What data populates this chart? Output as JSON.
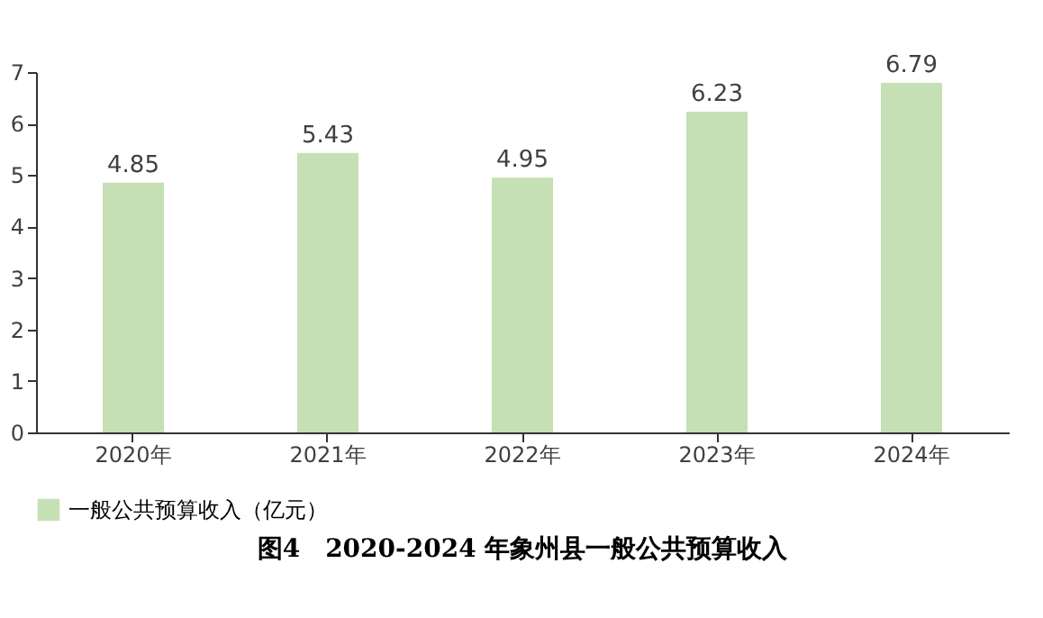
{
  "chart_data": {
    "type": "bar",
    "title": "图4　2020-2024 年象州县一般公共预算收入",
    "categories": [
      "2020年",
      "2021年",
      "2022年",
      "2023年",
      "2024年"
    ],
    "series": [
      {
        "name": "一般公共预算收入（亿元）",
        "color": "#c5e0b4",
        "values": [
          4.85,
          5.43,
          4.95,
          6.23,
          6.79
        ]
      }
    ],
    "ylim": [
      0,
      7
    ],
    "yticks": [
      0,
      1,
      2,
      3,
      4,
      5,
      6,
      7
    ],
    "grid": false,
    "legend": "bottom",
    "data_labels": true
  }
}
